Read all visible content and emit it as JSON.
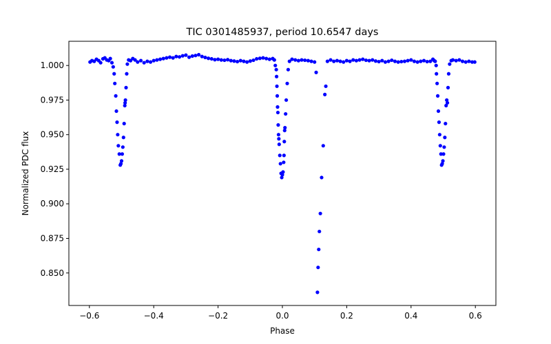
{
  "chart_data": {
    "type": "scatter",
    "title": "TIC 0301485937, period 10.6547 days",
    "xlabel": "Phase",
    "ylabel": "Normalized PDC flux",
    "xlim": [
      -0.6638,
      0.6638
    ],
    "ylim": [
      0.8265,
      1.0175
    ],
    "xticks": [
      -0.6,
      -0.4,
      -0.2,
      0.0,
      0.2,
      0.4,
      0.6
    ],
    "xtick_labels": [
      "−0.6",
      "−0.4",
      "−0.2",
      "0.0",
      "0.2",
      "0.4",
      "0.6"
    ],
    "yticks": [
      0.85,
      0.875,
      0.9,
      0.925,
      0.95,
      0.975,
      1.0
    ],
    "ytick_labels": [
      "0.850",
      "0.875",
      "0.900",
      "0.925",
      "0.950",
      "0.975",
      "1.000"
    ],
    "series_color": "#0000ff",
    "series": [
      {
        "name": "PDC flux",
        "points": [
          [
            -0.598,
            1.0025
          ],
          [
            -0.592,
            1.0035
          ],
          [
            -0.585,
            1.003
          ],
          [
            -0.578,
            1.0045
          ],
          [
            -0.571,
            1.0035
          ],
          [
            -0.565,
            1.002
          ],
          [
            -0.558,
            1.0048
          ],
          [
            -0.552,
            1.0055
          ],
          [
            -0.546,
            1.004
          ],
          [
            -0.54,
            1.0035
          ],
          [
            -0.535,
            1.005
          ],
          [
            -0.53,
            1.002
          ],
          [
            -0.526,
            0.999
          ],
          [
            -0.523,
            0.994
          ],
          [
            -0.521,
            0.987
          ],
          [
            -0.518,
            0.978
          ],
          [
            -0.516,
            0.967
          ],
          [
            -0.514,
            0.959
          ],
          [
            -0.512,
            0.95
          ],
          [
            -0.51,
            0.942
          ],
          [
            -0.507,
            0.936
          ],
          [
            -0.504,
            0.928
          ],
          [
            -0.502,
            0.929
          ],
          [
            -0.5,
            0.931
          ],
          [
            -0.498,
            0.936
          ],
          [
            -0.496,
            0.941
          ],
          [
            -0.494,
            0.948
          ],
          [
            -0.492,
            0.958
          ],
          [
            -0.49,
            0.971
          ],
          [
            -0.489,
            0.973
          ],
          [
            -0.488,
            0.975
          ],
          [
            -0.486,
            0.984
          ],
          [
            -0.484,
            0.994
          ],
          [
            -0.482,
            1.001
          ],
          [
            -0.478,
            1.004
          ],
          [
            -0.472,
            1.0035
          ],
          [
            -0.465,
            1.005
          ],
          [
            -0.458,
            1.004
          ],
          [
            -0.45,
            1.0025
          ],
          [
            -0.44,
            1.0035
          ],
          [
            -0.43,
            1.002
          ],
          [
            -0.42,
            1.003
          ],
          [
            -0.41,
            1.0025
          ],
          [
            -0.4,
            1.0035
          ],
          [
            -0.39,
            1.004
          ],
          [
            -0.38,
            1.0045
          ],
          [
            -0.37,
            1.005
          ],
          [
            -0.36,
            1.0055
          ],
          [
            -0.35,
            1.006
          ],
          [
            -0.34,
            1.0055
          ],
          [
            -0.33,
            1.0065
          ],
          [
            -0.32,
            1.0062
          ],
          [
            -0.31,
            1.007
          ],
          [
            -0.3,
            1.0075
          ],
          [
            -0.29,
            1.006
          ],
          [
            -0.28,
            1.0068
          ],
          [
            -0.27,
            1.0072
          ],
          [
            -0.26,
            1.0078
          ],
          [
            -0.25,
            1.0065
          ],
          [
            -0.24,
            1.0058
          ],
          [
            -0.23,
            1.0052
          ],
          [
            -0.22,
            1.0048
          ],
          [
            -0.21,
            1.0042
          ],
          [
            -0.2,
            1.0045
          ],
          [
            -0.19,
            1.004
          ],
          [
            -0.18,
            1.0038
          ],
          [
            -0.17,
            1.0042
          ],
          [
            -0.16,
            1.0035
          ],
          [
            -0.15,
            1.0032
          ],
          [
            -0.14,
            1.0028
          ],
          [
            -0.13,
            1.0035
          ],
          [
            -0.12,
            1.003
          ],
          [
            -0.11,
            1.0025
          ],
          [
            -0.1,
            1.0032
          ],
          [
            -0.09,
            1.0038
          ],
          [
            -0.08,
            1.0048
          ],
          [
            -0.07,
            1.0052
          ],
          [
            -0.06,
            1.0055
          ],
          [
            -0.05,
            1.005
          ],
          [
            -0.04,
            1.0045
          ],
          [
            -0.03,
            1.005
          ],
          [
            -0.025,
            1.004
          ],
          [
            -0.022,
            1.0
          ],
          [
            -0.019,
            0.997
          ],
          [
            -0.018,
            0.992
          ],
          [
            -0.017,
            0.985
          ],
          [
            -0.016,
            0.978
          ],
          [
            -0.015,
            0.97
          ],
          [
            -0.014,
            0.966
          ],
          [
            -0.013,
            0.957
          ],
          [
            -0.012,
            0.95
          ],
          [
            -0.011,
            0.947
          ],
          [
            -0.01,
            0.943
          ],
          [
            -0.008,
            0.935
          ],
          [
            -0.006,
            0.929
          ],
          [
            -0.004,
            0.922
          ],
          [
            -0.002,
            0.919
          ],
          [
            0.0,
            0.921
          ],
          [
            0.002,
            0.923
          ],
          [
            0.004,
            0.93
          ],
          [
            0.005,
            0.935
          ],
          [
            0.006,
            0.945
          ],
          [
            0.007,
            0.953
          ],
          [
            0.008,
            0.955
          ],
          [
            0.01,
            0.965
          ],
          [
            0.012,
            0.975
          ],
          [
            0.015,
            0.987
          ],
          [
            0.018,
            0.997
          ],
          [
            0.022,
            1.003
          ],
          [
            0.03,
            1.0045
          ],
          [
            0.04,
            1.004
          ],
          [
            0.05,
            1.0035
          ],
          [
            0.06,
            1.004
          ],
          [
            0.07,
            1.0038
          ],
          [
            0.08,
            1.0035
          ],
          [
            0.09,
            1.003
          ],
          [
            0.1,
            1.0025
          ],
          [
            0.105,
            0.995
          ],
          [
            0.109,
            0.836
          ],
          [
            0.111,
            0.854
          ],
          [
            0.113,
            0.867
          ],
          [
            0.115,
            0.88
          ],
          [
            0.118,
            0.893
          ],
          [
            0.122,
            0.919
          ],
          [
            0.127,
            0.942
          ],
          [
            0.132,
            0.979
          ],
          [
            0.135,
            0.985
          ],
          [
            0.14,
            1.003
          ],
          [
            0.15,
            1.004
          ],
          [
            0.16,
            1.003
          ],
          [
            0.17,
            1.0035
          ],
          [
            0.18,
            1.003
          ],
          [
            0.19,
            1.0025
          ],
          [
            0.2,
            1.0035
          ],
          [
            0.21,
            1.003
          ],
          [
            0.22,
            1.004
          ],
          [
            0.23,
            1.0035
          ],
          [
            0.24,
            1.004
          ],
          [
            0.25,
            1.0045
          ],
          [
            0.26,
            1.0038
          ],
          [
            0.27,
            1.0035
          ],
          [
            0.28,
            1.004
          ],
          [
            0.29,
            1.0032
          ],
          [
            0.3,
            1.0028
          ],
          [
            0.31,
            1.0035
          ],
          [
            0.32,
            1.0025
          ],
          [
            0.33,
            1.003
          ],
          [
            0.34,
            1.0038
          ],
          [
            0.35,
            1.003
          ],
          [
            0.36,
            1.0025
          ],
          [
            0.37,
            1.0028
          ],
          [
            0.38,
            1.003
          ],
          [
            0.39,
            1.0035
          ],
          [
            0.4,
            1.004
          ],
          [
            0.41,
            1.003
          ],
          [
            0.42,
            1.0025
          ],
          [
            0.43,
            1.003
          ],
          [
            0.44,
            1.0035
          ],
          [
            0.45,
            1.0028
          ],
          [
            0.46,
            1.003
          ],
          [
            0.468,
            1.0045
          ],
          [
            0.472,
            1.0035
          ],
          [
            0.475,
            1.003
          ],
          [
            0.478,
            1.0
          ],
          [
            0.479,
            0.994
          ],
          [
            0.481,
            0.987
          ],
          [
            0.483,
            0.978
          ],
          [
            0.485,
            0.967
          ],
          [
            0.487,
            0.959
          ],
          [
            0.489,
            0.95
          ],
          [
            0.491,
            0.942
          ],
          [
            0.493,
            0.936
          ],
          [
            0.495,
            0.928
          ],
          [
            0.497,
            0.929
          ],
          [
            0.499,
            0.931
          ],
          [
            0.501,
            0.936
          ],
          [
            0.503,
            0.941
          ],
          [
            0.505,
            0.948
          ],
          [
            0.507,
            0.958
          ],
          [
            0.509,
            0.971
          ],
          [
            0.511,
            0.975
          ],
          [
            0.513,
            0.973
          ],
          [
            0.515,
            0.984
          ],
          [
            0.517,
            0.994
          ],
          [
            0.52,
            1.001
          ],
          [
            0.525,
            1.0035
          ],
          [
            0.53,
            1.004
          ],
          [
            0.54,
            1.0035
          ],
          [
            0.55,
            1.004
          ],
          [
            0.56,
            1.003
          ],
          [
            0.57,
            1.0025
          ],
          [
            0.58,
            1.003
          ],
          [
            0.59,
            1.0025
          ],
          [
            0.598,
            1.0025
          ]
        ]
      }
    ]
  }
}
